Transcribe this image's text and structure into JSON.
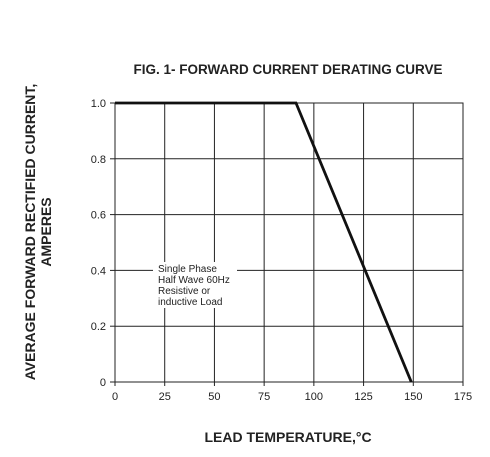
{
  "chart_data": {
    "type": "line",
    "title": "FIG. 1- FORWARD CURRENT DERATING CURVE",
    "xlabel": "LEAD TEMPERATURE,°C",
    "ylabel_line1": "AVERAGE FORWARD RECTIFIED CURRENT,",
    "ylabel_line2": "AMPERES",
    "xlim": [
      0,
      175
    ],
    "ylim": [
      0,
      1.0
    ],
    "x_ticks": [
      0,
      25,
      50,
      75,
      100,
      125,
      150,
      175
    ],
    "x_tick_labels": [
      "0",
      "25",
      "50",
      "75",
      "100",
      "125",
      "150",
      "175"
    ],
    "y_ticks": [
      0,
      0.2,
      0.4,
      0.6,
      0.8,
      1.0
    ],
    "y_tick_labels": [
      "0",
      "0.2",
      "0.4",
      "0.6",
      "0.8",
      "1.0"
    ],
    "grid": true,
    "series": [
      {
        "x": [
          0,
          91,
          149
        ],
        "y": [
          1.0,
          1.0,
          0
        ]
      }
    ],
    "annotation": [
      "Single Phase",
      "Half Wave 60Hz",
      "Resistive or",
      "inductive Load"
    ]
  }
}
